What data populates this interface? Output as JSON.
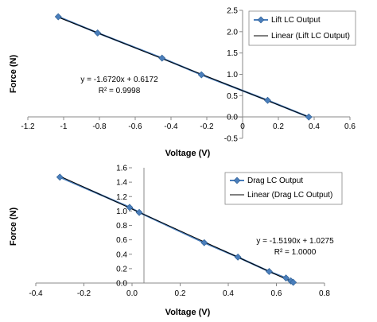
{
  "chart_data": [
    {
      "type": "scatter",
      "xlabel": "Voltage (V)",
      "ylabel": "Force (N)",
      "xlim": [
        -1.2,
        0.6
      ],
      "ylim": [
        -0.5,
        2.5
      ],
      "xticks": [
        "-1.2",
        "-1",
        "-0.8",
        "-0.6",
        "-0.4",
        "-0.2",
        "0",
        "0.2",
        "0.4",
        "0.6"
      ],
      "yticks": [
        "-0.5",
        "0.0",
        "0.5",
        "1.0",
        "1.5",
        "2.0",
        "2.5"
      ],
      "grid": false,
      "legend_position": "top-right",
      "series": [
        {
          "name": "Lift LC Output",
          "x": [
            -1.03,
            -0.81,
            -0.45,
            -0.23,
            0.14,
            0.37
          ],
          "y": [
            2.35,
            1.97,
            1.38,
            0.99,
            0.39,
            0.0
          ],
          "color": "#4a7ebb",
          "marker": "diamond"
        },
        {
          "name": "Linear (Lift LC Output)",
          "type": "line",
          "slope": -1.672,
          "intercept": 0.6172,
          "x_range": [
            -1.03,
            0.37
          ],
          "color": "#000000"
        }
      ],
      "annotations": [
        "y = -1.6720x + 0.6172",
        "R² = 0.9998"
      ]
    },
    {
      "type": "scatter",
      "xlabel": "Voltage (V)",
      "ylabel": "Force (N)",
      "xlim": [
        -0.4,
        0.8
      ],
      "ylim": [
        0.0,
        1.6
      ],
      "xticks": [
        "-0.4",
        "-0.2",
        "0.0",
        "0.2",
        "0.4",
        "0.6",
        "0.8"
      ],
      "yticks": [
        "0.0",
        "0.2",
        "0.4",
        "0.6",
        "0.8",
        "1.0",
        "1.2",
        "1.4",
        "1.6"
      ],
      "grid": false,
      "legend_position": "top-right",
      "series": [
        {
          "name": "Drag LC Output",
          "x": [
            -0.3,
            -0.01,
            0.03,
            0.3,
            0.44,
            0.57,
            0.64,
            0.66,
            0.67
          ],
          "y": [
            1.47,
            1.05,
            0.98,
            0.56,
            0.36,
            0.16,
            0.07,
            0.03,
            0.01
          ],
          "color": "#4a7ebb",
          "marker": "diamond"
        },
        {
          "name": "Linear (Drag LC Output)",
          "type": "line",
          "slope": -1.519,
          "intercept": 1.0275,
          "x_range": [
            -0.3,
            0.67
          ],
          "color": "#000000"
        }
      ],
      "annotations": [
        "y = -1.5190x + 1.0275",
        "R² = 1.0000"
      ]
    }
  ]
}
